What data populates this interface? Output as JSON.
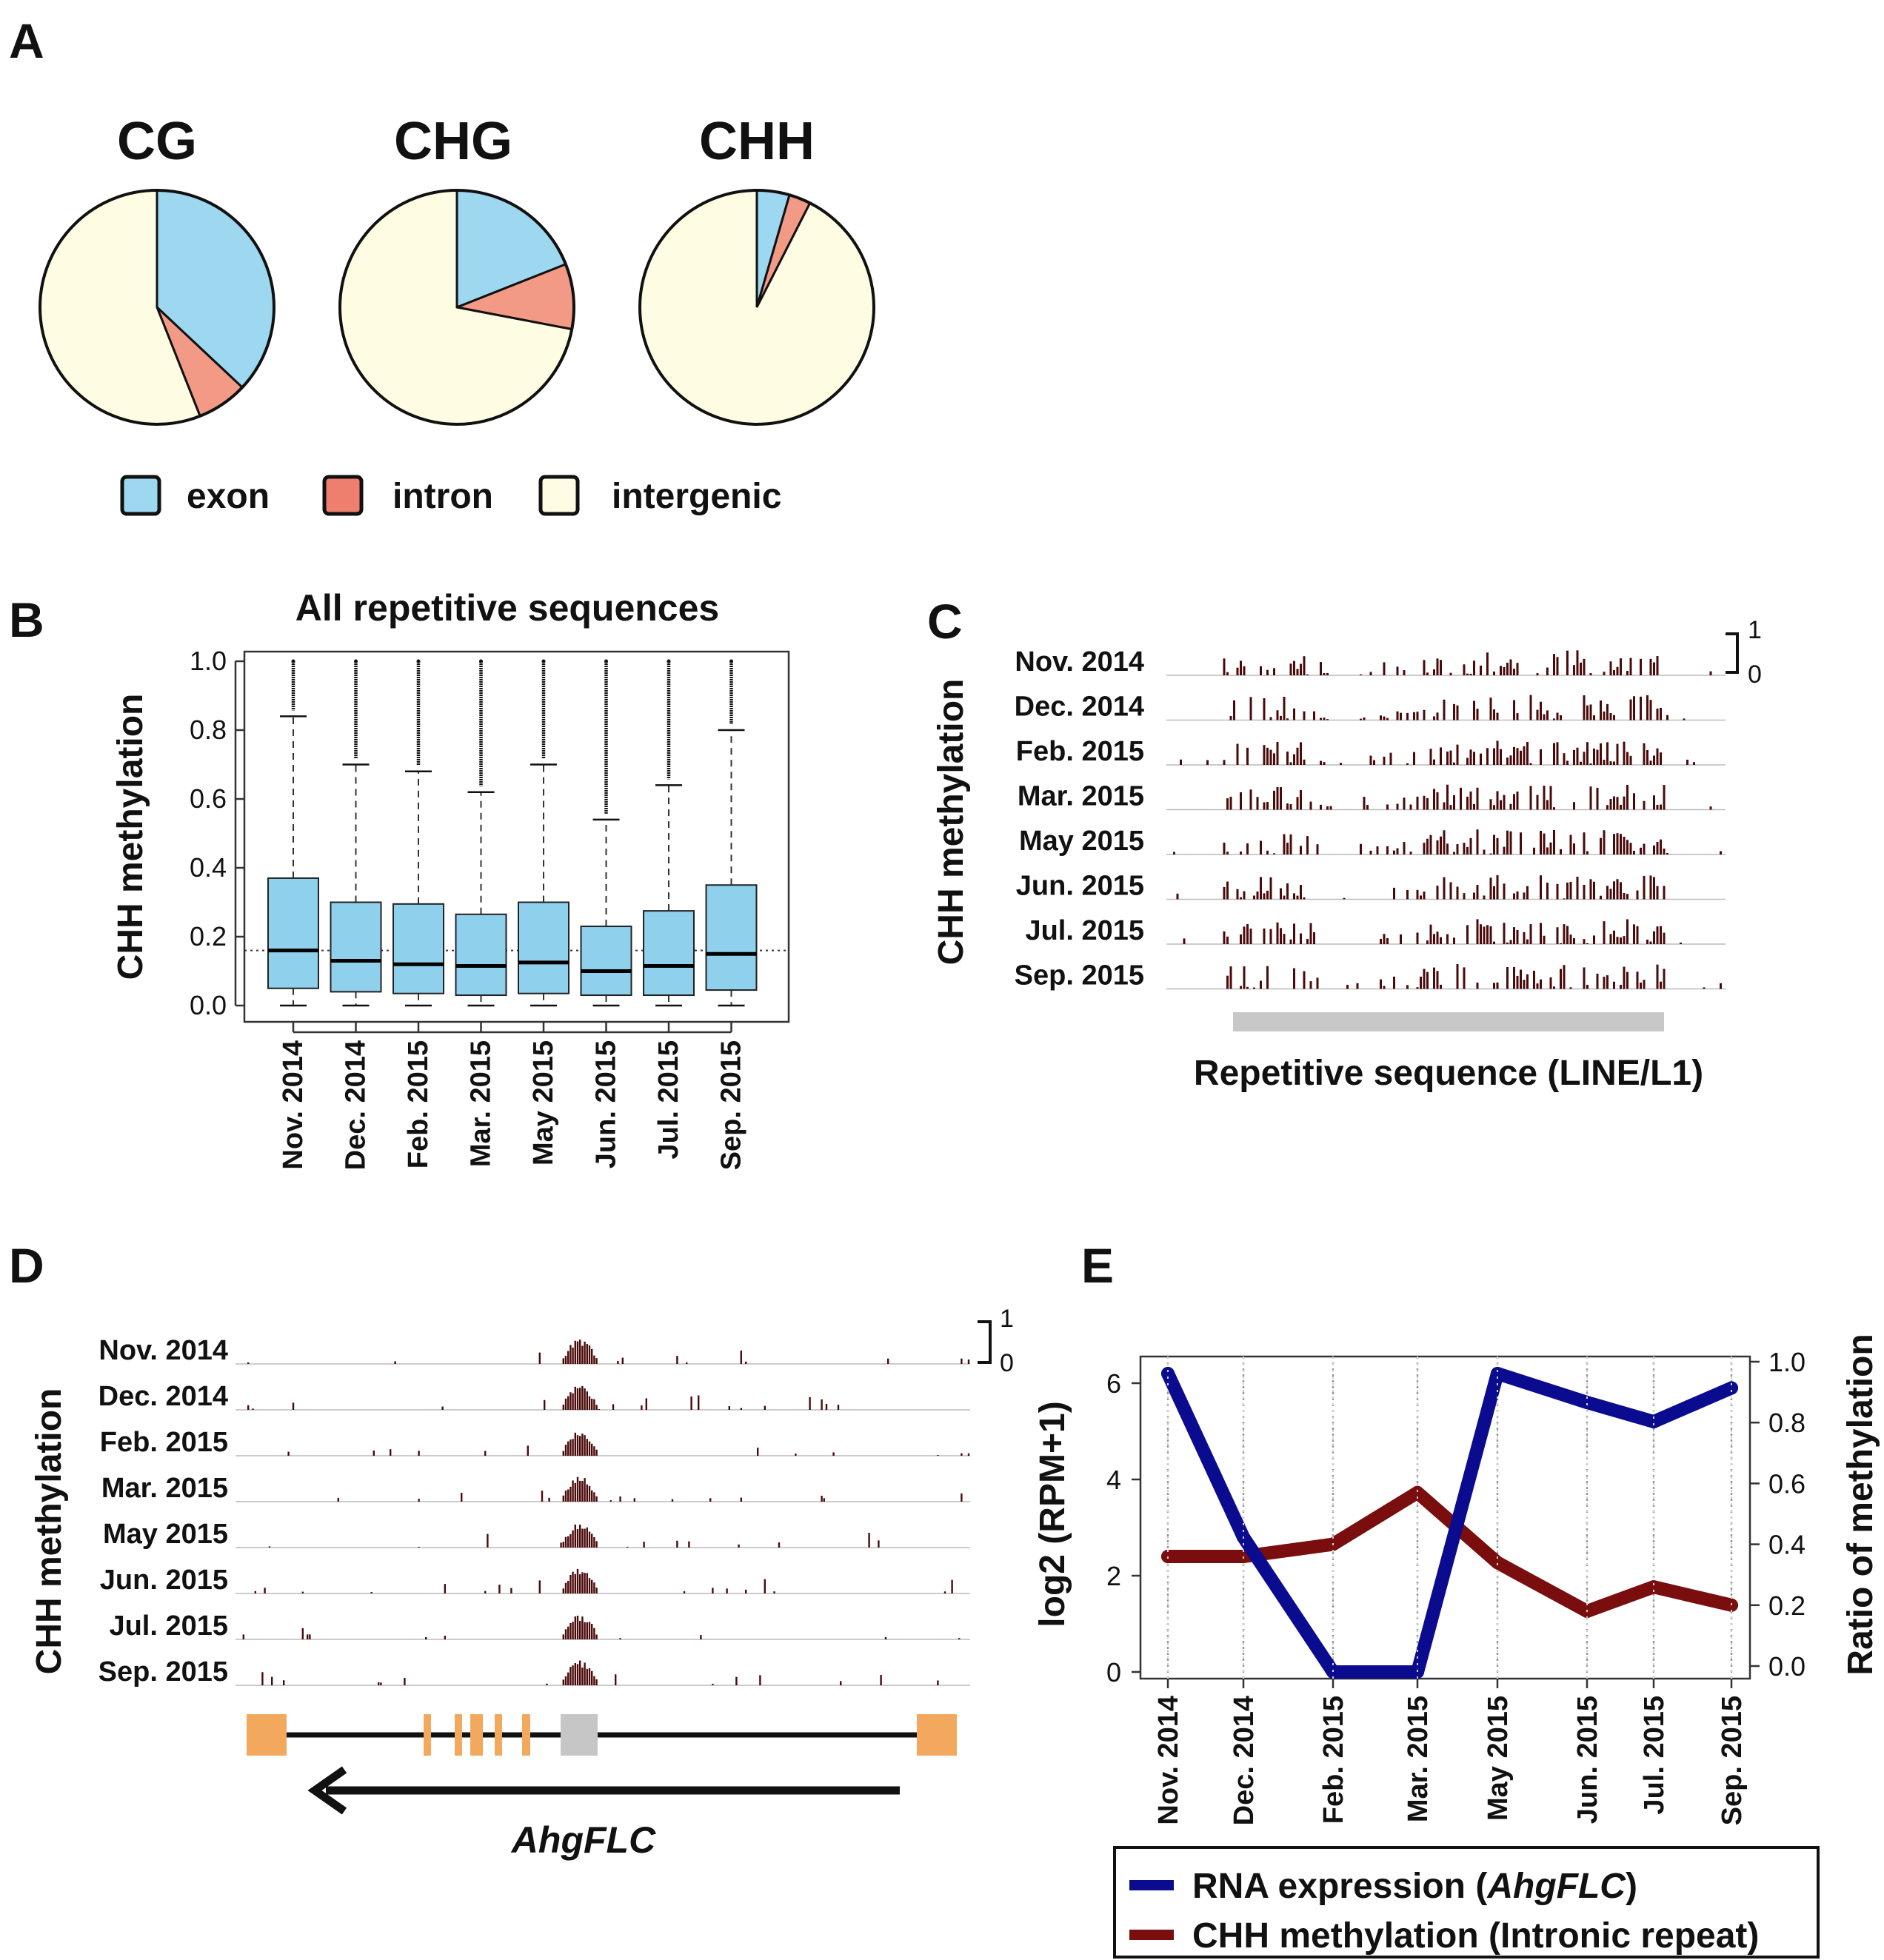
{
  "panels": [
    "A",
    "B",
    "C",
    "D",
    "E"
  ],
  "colors": {
    "exon": "#9dd7f0",
    "intron": "#f29a85",
    "intergenic": "#fefde3",
    "box": "#8fd0ec",
    "track": "#4a0a0a",
    "rna": "#0b0b8f",
    "chh": "#7a0d0d",
    "grey_bar": "#c8c8c8",
    "gene_exon": "#f2a95e",
    "gene_repeat": "#c6c6c6"
  },
  "chart_data": [
    {
      "panel": "A",
      "type": "pie",
      "legend": [
        "exon",
        "intron",
        "intergenic"
      ],
      "pies": [
        {
          "title": "CG",
          "values": [
            37,
            7,
            56
          ]
        },
        {
          "title": "CHG",
          "values": [
            19,
            9,
            72
          ]
        },
        {
          "title": "CHH",
          "values": [
            4.5,
            3,
            92.5
          ]
        }
      ]
    },
    {
      "panel": "B",
      "type": "box",
      "title": "All repetitive sequences",
      "ylabel": "CHH methylation",
      "ylim": [
        0,
        1
      ],
      "yticks": [
        "0.0",
        "0.2",
        "0.4",
        "0.6",
        "0.8",
        "1.0"
      ],
      "reference_line": 0.16,
      "categories": [
        "Nov. 2014",
        "Dec. 2014",
        "Feb. 2015",
        "Mar. 2015",
        "May 2015",
        "Jun. 2015",
        "Jul. 2015",
        "Sep. 2015"
      ],
      "boxes": [
        {
          "min": 0,
          "q1": 0.05,
          "median": 0.16,
          "q3": 0.37,
          "whisker_hi": 0.84,
          "outlier_lo": 0.84,
          "outlier_hi": 1.0
        },
        {
          "min": 0,
          "q1": 0.04,
          "median": 0.13,
          "q3": 0.3,
          "whisker_hi": 0.7,
          "outlier_lo": 0.7,
          "outlier_hi": 1.0
        },
        {
          "min": 0,
          "q1": 0.035,
          "median": 0.12,
          "q3": 0.295,
          "whisker_hi": 0.68,
          "outlier_lo": 0.68,
          "outlier_hi": 1.0
        },
        {
          "min": 0,
          "q1": 0.03,
          "median": 0.115,
          "q3": 0.265,
          "whisker_hi": 0.62,
          "outlier_lo": 0.62,
          "outlier_hi": 1.0
        },
        {
          "min": 0,
          "q1": 0.035,
          "median": 0.125,
          "q3": 0.3,
          "whisker_hi": 0.7,
          "outlier_lo": 0.7,
          "outlier_hi": 1.0
        },
        {
          "min": 0,
          "q1": 0.03,
          "median": 0.1,
          "q3": 0.23,
          "whisker_hi": 0.54,
          "outlier_lo": 0.54,
          "outlier_hi": 1.0
        },
        {
          "min": 0,
          "q1": 0.03,
          "median": 0.115,
          "q3": 0.275,
          "whisker_hi": 0.64,
          "outlier_lo": 0.64,
          "outlier_hi": 1.0
        },
        {
          "min": 0,
          "q1": 0.045,
          "median": 0.15,
          "q3": 0.35,
          "whisker_hi": 0.8,
          "outlier_lo": 0.8,
          "outlier_hi": 1.0
        }
      ]
    },
    {
      "panel": "C",
      "type": "track",
      "ylabel": "CHH methylation",
      "tracks": [
        "Nov. 2014",
        "Dec. 2014",
        "Feb. 2015",
        "Mar. 2015",
        "May 2015",
        "Jun. 2015",
        "Jul. 2015",
        "Sep. 2015"
      ],
      "scale": [
        "1",
        "0"
      ],
      "xlabel": "Repetitive sequence (LINE/L1)"
    },
    {
      "panel": "D",
      "type": "track",
      "ylabel": "CHH methylation",
      "tracks": [
        "Nov. 2014",
        "Dec. 2014",
        "Feb. 2015",
        "Mar. 2015",
        "May 2015",
        "Jun. 2015",
        "Jul. 2015",
        "Sep. 2015"
      ],
      "scale": [
        "1",
        "0"
      ],
      "gene": "AhgFLC"
    },
    {
      "panel": "E",
      "type": "line",
      "ylabel_left": "log2 (RPM+1)",
      "ylabel_right": "Ratio of methylation",
      "ylim_left": [
        0,
        6.5
      ],
      "ylim_right": [
        0,
        1.0
      ],
      "yticks_left": [
        "0",
        "2",
        "4",
        "6"
      ],
      "yticks_right": [
        "0.0",
        "0.2",
        "0.4",
        "0.6",
        "0.8",
        "1.0"
      ],
      "categories": [
        "Nov. 2014",
        "Dec. 2014",
        "Feb. 2015",
        "Mar. 2015",
        "May 2015",
        "Jun. 2015",
        "Jul. 2015",
        "Sep. 2015"
      ],
      "series": [
        {
          "name": "RNA expression",
          "gene": "AhgFLC",
          "axis": "left",
          "values": [
            6.2,
            2.8,
            0.0,
            0.0,
            6.2,
            5.6,
            5.2,
            5.9
          ]
        },
        {
          "name": "CHH methylation (Intronic repeat)",
          "axis": "right",
          "values": [
            0.36,
            0.36,
            0.4,
            0.57,
            0.34,
            0.18,
            0.26,
            0.2
          ]
        }
      ],
      "legend": [
        "RNA expression  (AhgFLC)",
        "CHH methylation (Intronic repeat)"
      ]
    }
  ]
}
